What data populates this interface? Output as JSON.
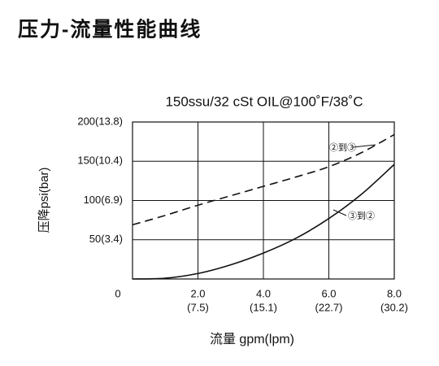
{
  "chart_data": {
    "type": "line",
    "title": "压力-流量性能曲线",
    "subtitle": "150ssu/32 cSt OIL@100˚F/38˚C",
    "y_label": "压降psi(bar)",
    "x_label": "流量 gpm(lpm)",
    "x": [
      0,
      1,
      2,
      3,
      4,
      5,
      6,
      7,
      8
    ],
    "series": [
      {
        "name": "②到③",
        "color": "#111111",
        "dash": true,
        "values": [
          69,
          81,
          94,
          106,
          118,
          130,
          143,
          161,
          184
        ]
      },
      {
        "name": "③到②",
        "color": "#111111",
        "dash": false,
        "values": [
          0,
          1,
          7,
          18,
          33,
          52,
          77,
          108,
          146
        ]
      }
    ],
    "xlim": [
      0,
      8
    ],
    "ylim": [
      0,
      200
    ],
    "xticks": [
      0,
      {
        "value": 2,
        "label": "2.0"
      },
      {
        "value": 4,
        "label": "4.0"
      },
      {
        "value": 6,
        "label": "6.0"
      },
      {
        "value": 8,
        "label": "8.0"
      }
    ],
    "xticks_lpm": [
      null,
      "(7.5)",
      "(15.1)",
      "(22.7)",
      "(30.2)"
    ],
    "yticks": [
      {
        "value": 50,
        "label": "50(3.4)"
      },
      {
        "value": 100,
        "label": "100(6.9)"
      },
      {
        "value": 150,
        "label": "150(10.4)"
      },
      {
        "value": 200,
        "label": "200(13.8)"
      }
    ],
    "grid": true
  }
}
